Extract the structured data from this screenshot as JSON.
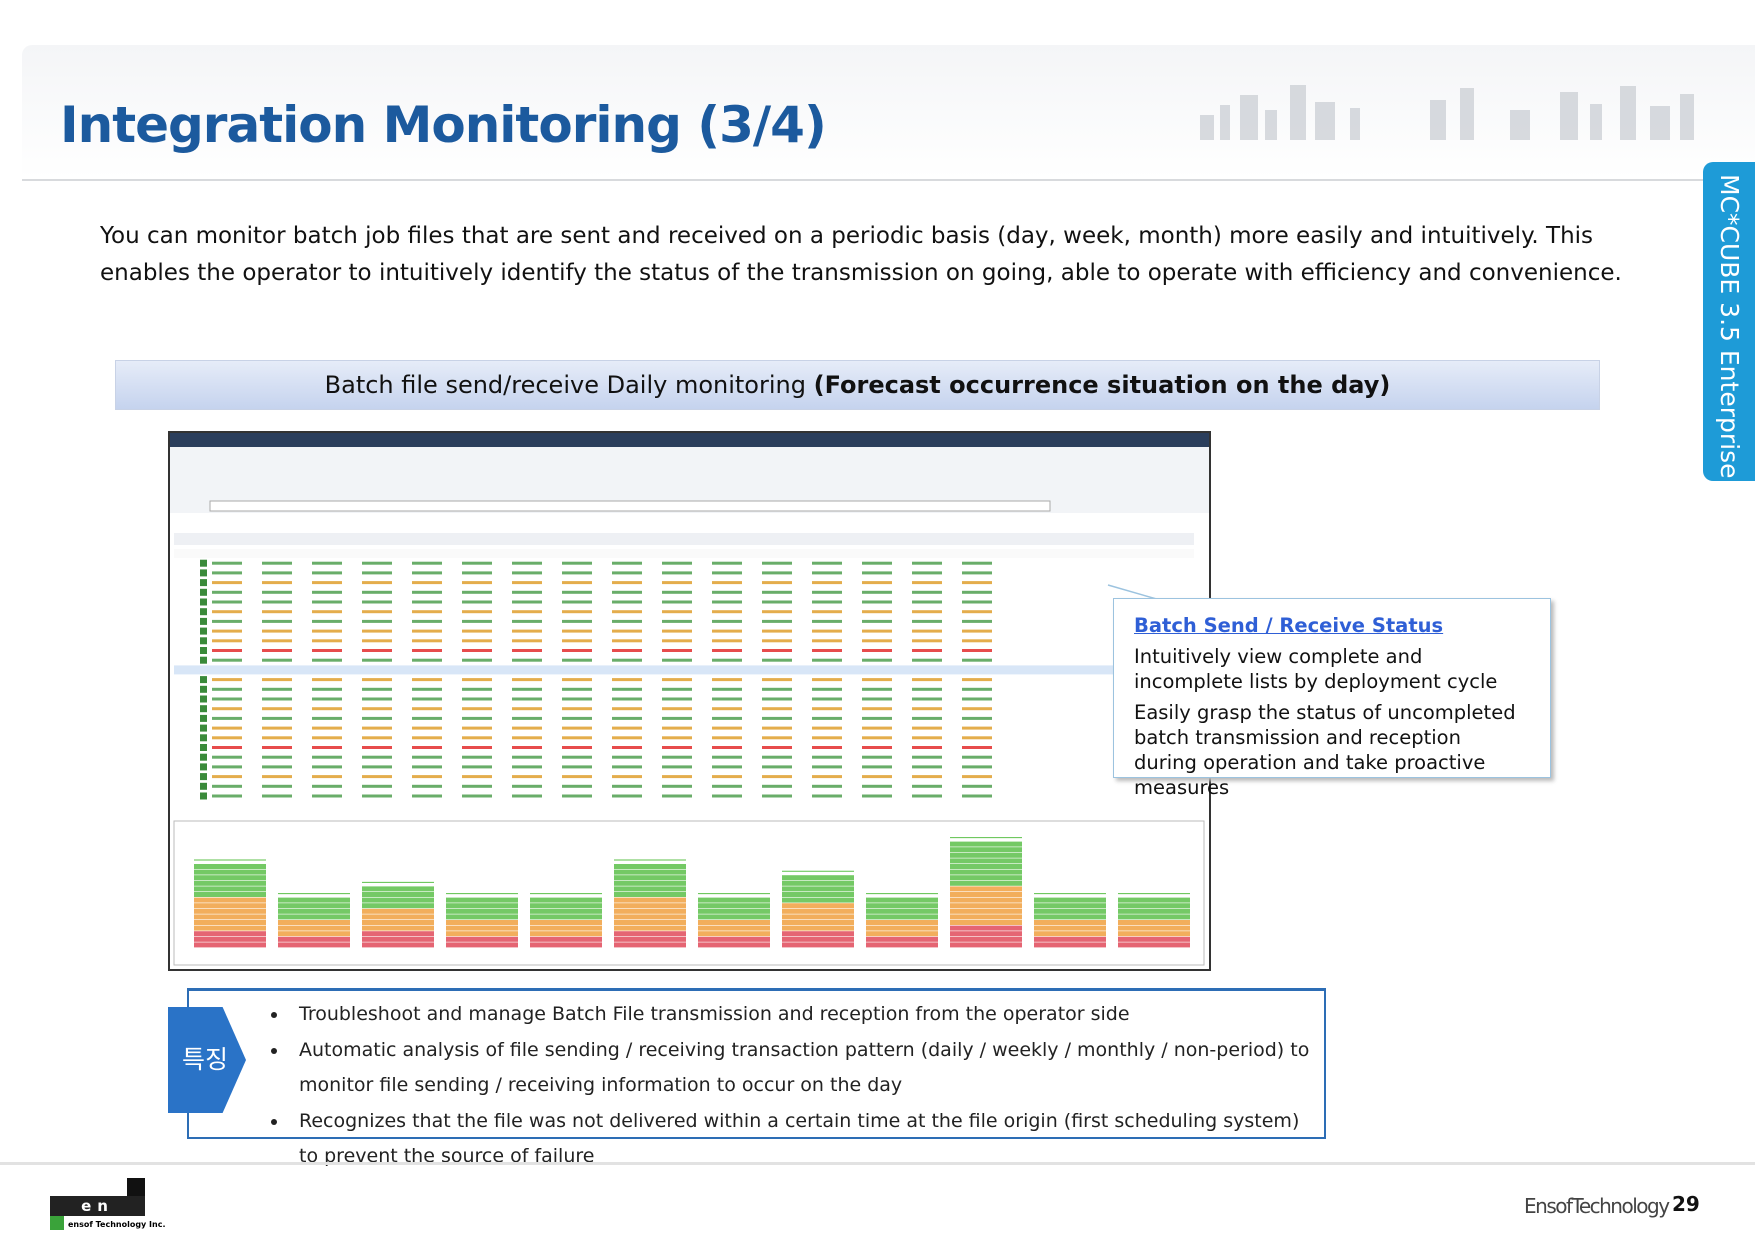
{
  "header": {
    "title": "Integration Monitoring (3/4)"
  },
  "side_tab": "MC*CUBE 3.5 Enterprise",
  "intro": "You can monitor batch job files that are sent and received on a periodic basis (day, week, month) more easily and intuitively. This enables the operator to intuitively identify the status of the transmission on going, able to operate with efficiency and convenience.",
  "banner": {
    "text": "Batch file send/receive Daily monitoring",
    "bold": "(Forecast occurrence situation on the day)"
  },
  "callout": {
    "title": "Batch Send / Receive Status",
    "lines": [
      "Intuitively view complete and incomplete lists by deployment cycle",
      "Easily grasp the status of uncompleted batch transmission and reception during operation and take proactive measures"
    ]
  },
  "features": {
    "label": "특징",
    "items": [
      "Troubleshoot and manage Batch File transmission and reception from the operator side",
      "Automatic analysis of file sending / receiving transaction pattern (daily / weekly / monthly / non-period) to monitor file sending / receiving information to occur on the day",
      "Recognizes that the file was not delivered within a certain time at the file origin (first scheduling system) to prevent the source of failure"
    ]
  },
  "footer": {
    "logo": "en SOF",
    "logo_sub": "ensof Technology Inc.",
    "company": "EnsofTechnology",
    "page": "29"
  }
}
